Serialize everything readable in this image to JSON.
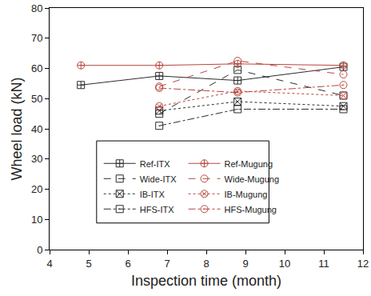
{
  "chart_data": {
    "type": "line",
    "x_label": "Inspection time (month)",
    "y_label": "Wheel load (kN)",
    "xlim": [
      4,
      12
    ],
    "xticks": [
      4,
      5,
      6,
      7,
      8,
      9,
      10,
      11,
      12
    ],
    "ylim": [
      0,
      80
    ],
    "yticks": [
      0,
      10,
      20,
      30,
      40,
      50,
      60,
      70,
      80
    ],
    "grid": false,
    "legend": "lower center",
    "series": [
      {
        "name": "Ref-ITX",
        "color": "#2b2b2b",
        "marker": "square-cross-open",
        "line_style": "solid",
        "x": [
          4.8,
          6.8,
          8.8,
          11.5
        ],
        "values": [
          54.5,
          57.5,
          56,
          60.5
        ]
      },
      {
        "name": "Ref-Mugung",
        "color": "#b8453c",
        "marker": "circle-cross-open",
        "line_style": "solid",
        "x": [
          4.8,
          6.8,
          8.8,
          11.5
        ],
        "values": [
          61,
          61,
          61.5,
          61
        ]
      },
      {
        "name": "Wide-ITX",
        "color": "#2b2b2b",
        "marker": "square-open",
        "line_style": "dash",
        "x": [
          6.8,
          8.8,
          11.5
        ],
        "values": [
          45,
          59.5,
          51
        ]
      },
      {
        "name": "Wide-Mugung",
        "color": "#b8453c",
        "marker": "circle-open",
        "line_style": "dash",
        "x": [
          6.8,
          8.8,
          11.5
        ],
        "values": [
          54,
          62.5,
          58
        ]
      },
      {
        "name": "IB-ITX",
        "color": "#2b2b2b",
        "marker": "square-x-open",
        "line_style": "dot",
        "x": [
          6.8,
          8.8,
          11.5
        ],
        "values": [
          46,
          49,
          47.5
        ]
      },
      {
        "name": "IB-Mugung",
        "color": "#b8453c",
        "marker": "circle-x-open",
        "line_style": "dot",
        "x": [
          6.8,
          8.8,
          11.5
        ],
        "values": [
          47.5,
          52.5,
          51
        ]
      },
      {
        "name": "HFS-ITX",
        "color": "#2b2b2b",
        "marker": "square-open-dot",
        "line_style": "dashdot",
        "x": [
          6.8,
          8.8,
          11.5
        ],
        "values": [
          41,
          46.5,
          46.5
        ]
      },
      {
        "name": "HFS-Mugung",
        "color": "#b8453c",
        "marker": "circle-open-dot",
        "line_style": "dashdot",
        "x": [
          6.8,
          8.8,
          11.5
        ],
        "values": [
          53.5,
          52,
          54.5
        ]
      }
    ]
  }
}
